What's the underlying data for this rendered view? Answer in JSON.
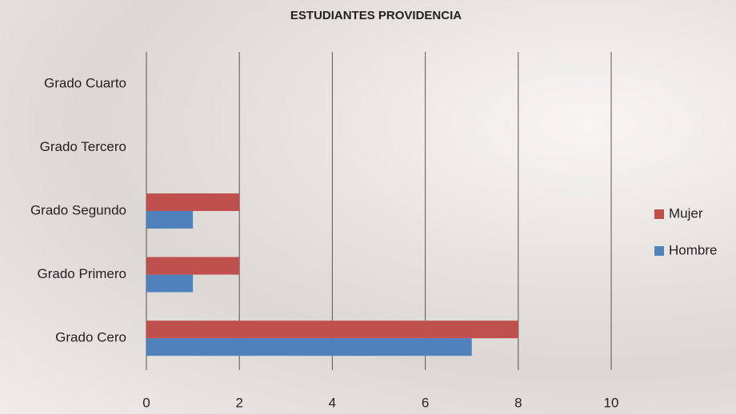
{
  "chart_data": {
    "type": "barh",
    "title": "ESTUDIANTES PROVIDENCIA",
    "categories": [
      "Grado Cero",
      "Grado Primero",
      "Grado Segundo",
      "Grado Tercero",
      "Grado Cuarto"
    ],
    "series": [
      {
        "name": "Hombre",
        "color": "#4f81bd",
        "values": [
          7,
          1,
          1,
          0,
          0
        ]
      },
      {
        "name": "Mujer",
        "color": "#c0504d",
        "values": [
          8,
          2,
          2,
          0,
          0
        ]
      }
    ],
    "xlim": [
      0,
      10
    ],
    "xticks": [
      0,
      2,
      4,
      6,
      8,
      10
    ],
    "grid": true,
    "legend": "right"
  }
}
